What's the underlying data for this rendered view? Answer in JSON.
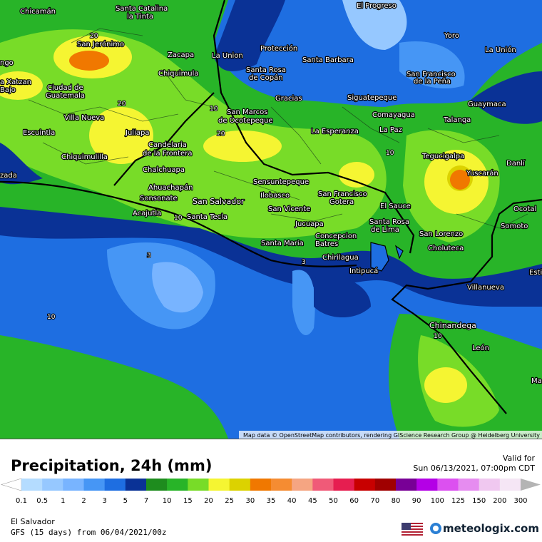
{
  "map": {
    "places": [
      [
        "Chicamán"
      ],
      [
        "Santa Catalina",
        "la Tinta"
      ],
      [
        "El Progreso"
      ],
      [
        "Yoro"
      ],
      [
        "San Jerónimo"
      ],
      [
        "Zacapa"
      ],
      [
        "La Union"
      ],
      [
        "Protección"
      ],
      [
        "La Unión"
      ],
      [
        "Santa Barbara"
      ],
      [
        "Santa Rosa",
        "de Copán"
      ],
      [
        "San Francisco",
        "de la Peña"
      ],
      [
        "Chiquimula"
      ],
      [
        "Ciudad de",
        "Guatemala"
      ],
      [
        "Gracias"
      ],
      [
        "Siguatepeque"
      ],
      [
        "Guaymaca"
      ],
      [
        "San Marcos",
        "de Ocotepeque"
      ],
      [
        "Comayagua"
      ],
      [
        "Villa Nueva"
      ],
      [
        "Talanga"
      ],
      [
        "Escuintla"
      ],
      [
        "Juliapa"
      ],
      [
        "La Esperanza"
      ],
      [
        "La Paz"
      ],
      [
        "Candelaria",
        "de la Frontera"
      ],
      [
        "Chiquimulilla"
      ],
      [
        "Tegucigalpa"
      ],
      [
        "Danlí"
      ],
      [
        "Yuscarán"
      ],
      [
        "Chalchuapa"
      ],
      [
        "Sensuntepeque"
      ],
      [
        "Ahuachapán"
      ],
      [
        "San Francisco",
        "Gotera"
      ],
      [
        "Ilobasco"
      ],
      [
        "Sonsonate"
      ],
      [
        "San Salvador"
      ],
      [
        "El Sauce"
      ],
      [
        "Ocotal"
      ],
      [
        "San Vicente"
      ],
      [
        "Acajutla"
      ],
      [
        "Santa Tecla"
      ],
      [
        "Santa Rosa",
        "de Lima"
      ],
      [
        "Jucuapa"
      ],
      [
        "Somoto"
      ],
      [
        "San Lorenzo"
      ],
      [
        "Concepcion",
        "Batres"
      ],
      [
        "Santa Maria"
      ],
      [
        "Choluteca"
      ],
      [
        "Chirilagua"
      ],
      [
        "Intipucá"
      ],
      [
        "Villanueva"
      ],
      [
        "Chinandega"
      ],
      [
        "León"
      ],
      [
        "ngo"
      ],
      [
        "a Xatzan",
        "Bajo"
      ],
      [
        "zada"
      ],
      [
        "Esti"
      ],
      [
        "Ma"
      ]
    ],
    "contour_labels": [
      "20",
      "20",
      "10",
      "20",
      "10",
      "3",
      "3",
      "10",
      "10",
      "10"
    ],
    "attribution": "Map data © OpenStreetMap contributors, rendering GIScience Research Group @ Heidelberg University"
  },
  "legend": {
    "title": "Precipitation, 24h (mm)",
    "valid_label": "Valid for",
    "valid_time": "Sun 06/13/2021, 07:00pm CDT",
    "ticks": [
      0.1,
      0.5,
      1,
      2,
      3,
      5,
      7,
      10,
      15,
      20,
      25,
      30,
      35,
      40,
      45,
      50,
      60,
      70,
      80,
      90,
      100,
      125,
      150,
      200,
      300
    ],
    "colors": [
      "#ffffff",
      "#b4dcff",
      "#96c8ff",
      "#78b4ff",
      "#4696f5",
      "#1e6ee1",
      "#0a3296",
      "#1e8c1e",
      "#28b428",
      "#78dc28",
      "#f5f532",
      "#dcd200",
      "#f07800",
      "#f58c32",
      "#f5a582",
      "#f05a78",
      "#e61e50",
      "#c80000",
      "#a00000",
      "#780096",
      "#b400e6",
      "#dc50f0",
      "#e68cf0",
      "#f0c8f0",
      "#f5e6f5",
      "#b4b4b4"
    ]
  },
  "footer": {
    "region": "El Salvador",
    "model": "GFS (15 days) from 06/04/2021/00z",
    "brand": "meteologix.com"
  }
}
